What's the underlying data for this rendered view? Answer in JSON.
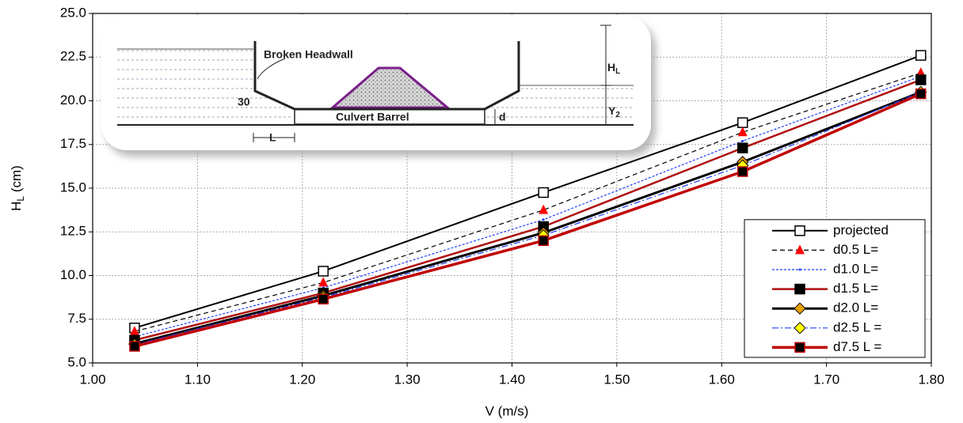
{
  "chart_data": {
    "type": "line",
    "x_label": "V (m/s)",
    "y_label": {
      "main": "H",
      "sub": "L",
      "rest": " (cm)"
    },
    "x": [
      1.04,
      1.22,
      1.43,
      1.62,
      1.79
    ],
    "xlim": [
      1.0,
      1.8
    ],
    "xticks": [
      {
        "value": 1.0,
        "label": "1.00"
      },
      {
        "value": 1.1,
        "label": "1.10"
      },
      {
        "value": 1.2,
        "label": "1.20"
      },
      {
        "value": 1.3,
        "label": "1.30"
      },
      {
        "value": 1.4,
        "label": "1.40"
      },
      {
        "value": 1.5,
        "label": "1.50"
      },
      {
        "value": 1.6,
        "label": "1.60"
      },
      {
        "value": 1.7,
        "label": "1.70"
      },
      {
        "value": 1.8,
        "label": "1.80"
      }
    ],
    "ylim": [
      5.0,
      25.0
    ],
    "yticks": [
      {
        "value": 5.0,
        "label": "5.0"
      },
      7.5,
      {
        "value": 10.0,
        "label": "10.0"
      },
      12.5,
      {
        "value": 15.0,
        "label": "15.0"
      },
      17.5,
      {
        "value": 20.0,
        "label": "20.0"
      },
      22.5,
      {
        "value": 25.0,
        "label": "25.0"
      }
    ],
    "grid": true,
    "legend": "lower right",
    "series": [
      {
        "name": "projected",
        "color": "#000000",
        "dash": "solid",
        "width": 2,
        "marker": "square",
        "marker_color": "#ffffff",
        "values": [
          7.0,
          10.25,
          14.75,
          18.75,
          22.6
        ]
      },
      {
        "name": "d0.5 L=",
        "color": "#000000",
        "dash": "dashed",
        "width": 1.2,
        "marker": "triangle",
        "marker_color": "#ff0000",
        "values": [
          6.8,
          9.6,
          13.75,
          18.2,
          21.6
        ]
      },
      {
        "name": "d1.0 L=",
        "color": "#1f3fff",
        "dash": "dotted",
        "width": 1.2,
        "marker": "none",
        "marker_color": "#1f3fff",
        "values": [
          6.5,
          9.3,
          13.2,
          17.7,
          21.4
        ]
      },
      {
        "name": "d1.5 L=",
        "color": "#b01010",
        "dash": "solid",
        "width": 2.5,
        "marker": "square",
        "marker_color": "#000000",
        "values": [
          6.3,
          9.0,
          12.8,
          17.3,
          21.2
        ]
      },
      {
        "name": "d2.0 L=",
        "color": "#000000",
        "dash": "solid",
        "width": 3,
        "marker": "diamond",
        "marker_color": "#e8a000",
        "values": [
          6.1,
          8.85,
          12.45,
          16.5,
          20.5
        ]
      },
      {
        "name": "d2.5 L =",
        "color": "#1f3fff",
        "dash": "dashdot",
        "width": 1.2,
        "marker": "diamond",
        "marker_color": "#ffff00",
        "values": [
          6.05,
          8.75,
          12.3,
          16.3,
          20.5
        ]
      },
      {
        "name": "d7.5 L =",
        "color": "#c00000",
        "dash": "solid",
        "width": 3.5,
        "marker": "square",
        "marker_color": "#000000",
        "values": [
          5.95,
          8.65,
          12.0,
          15.95,
          20.4
        ]
      }
    ],
    "inset": {
      "headwall": "Broken Headwall",
      "angle": "30",
      "barrel": "Culvert Barrel",
      "d": "d",
      "L": "L",
      "HL": {
        "main": "H",
        "sub": "L"
      },
      "Y2": {
        "main": "Y",
        "sub": "2"
      }
    }
  }
}
